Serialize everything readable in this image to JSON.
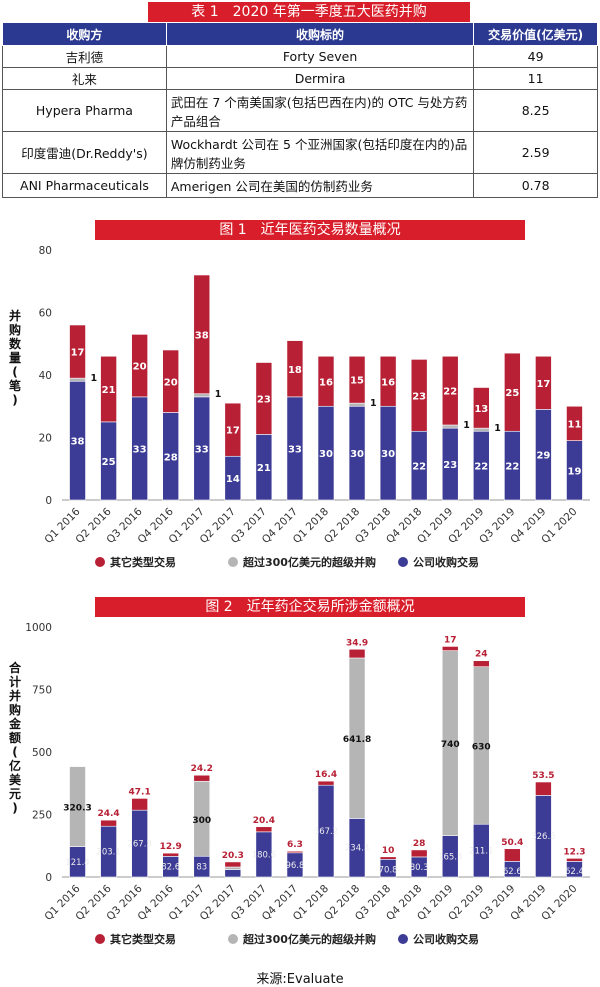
{
  "table": {
    "title": "表 1　2020 年第一季度五大医药并购",
    "headers": [
      "收购方",
      "收购标的",
      "交易价值(亿美元)"
    ],
    "rows": [
      [
        "吉利德",
        "Forty Seven",
        "49"
      ],
      [
        "礼来",
        "Dermira",
        "11"
      ],
      [
        "Hypera Pharma",
        "武田在 7 个南美国家(包括巴西在内)的 OTC 与处方药产品组合",
        "8.25"
      ],
      [
        "印度雷迪(Dr.Reddy's)",
        "Wockhardt 公司在 5 个亚洲国家(包括印度在内的)品牌仿制药业务",
        "2.59"
      ],
      [
        "ANI Pharmaceuticals",
        "Amerigen 公司在美国的仿制药业务",
        "0.78"
      ]
    ]
  },
  "colors": {
    "header_blue": "#2b3990",
    "banner_red": "#d81e2a",
    "other_red": "#b72035",
    "mega_gray": "#b5b5b6",
    "company_blue": "#3c3b95"
  },
  "chart_data": [
    {
      "type": "bar",
      "stacked": true,
      "title": "图 1　近年医药交易数量概况",
      "ylabel": "并购数量(笔)",
      "ylim": [
        0,
        80
      ],
      "yticks": [
        0,
        20,
        40,
        60,
        80
      ],
      "categories": [
        "Q1 2016",
        "Q2 2016",
        "Q3 2016",
        "Q4 2016",
        "Q1 2017",
        "Q2 2017",
        "Q3 2017",
        "Q4 2017",
        "Q1 2018",
        "Q2 2018",
        "Q3 2018",
        "Q4 2018",
        "Q1 2019",
        "Q2 2019",
        "Q3 2019",
        "Q4 2019",
        "Q1 2020"
      ],
      "series": [
        {
          "name": "公司收购交易",
          "values": [
            38,
            25,
            33,
            28,
            33,
            14,
            21,
            33,
            30,
            30,
            30,
            22,
            23,
            22,
            22,
            29,
            19
          ],
          "labels": [
            "38",
            "25",
            "33",
            "28",
            "33",
            "14",
            "21",
            "33",
            "30",
            "30",
            "30",
            "22",
            "23",
            "22",
            "22",
            "29",
            "19"
          ]
        },
        {
          "name": "超过300亿美元的超级并购",
          "values": [
            1,
            0,
            0,
            0,
            1,
            0,
            0,
            0,
            0,
            1,
            0,
            0,
            1,
            1,
            0,
            0,
            0
          ],
          "labels": [
            "1",
            "",
            "",
            "",
            "1",
            "",
            "",
            "",
            "",
            "1",
            "",
            "",
            "1",
            "1",
            "",
            "",
            ""
          ]
        },
        {
          "name": "其它类型交易",
          "values": [
            17,
            21,
            20,
            20,
            38,
            17,
            23,
            18,
            16,
            15,
            16,
            23,
            22,
            13,
            25,
            17,
            11
          ],
          "labels": [
            "17",
            "21",
            "20",
            "20",
            "38",
            "17",
            "23",
            "18",
            "16",
            "15",
            "16",
            "23",
            "22",
            "13",
            "25",
            "17",
            "11"
          ]
        }
      ],
      "legend": [
        "其它类型交易",
        "超过300亿美元的超级并购",
        "公司收购交易"
      ]
    },
    {
      "type": "bar",
      "stacked": true,
      "title": "图 2　近年药企交易所涉金额概况",
      "ylabel": "合计并购金额(亿美元)",
      "ylim": [
        0,
        1000
      ],
      "yticks": [
        0,
        250,
        500,
        750,
        1000
      ],
      "categories": [
        "Q1 2016",
        "Q2 2016",
        "Q3 2016",
        "Q4 2016",
        "Q1 2017",
        "Q2 2017",
        "Q3 2017",
        "Q4 2017",
        "Q1 2018",
        "Q2 2018",
        "Q3 2018",
        "Q4 2018",
        "Q1 2019",
        "Q2 2019",
        "Q3 2019",
        "Q4 2019",
        "Q1 2020"
      ],
      "series": [
        {
          "name": "公司收购交易",
          "values": [
            121.4,
            203.1,
            267.3,
            82.6,
            83,
            30,
            180.6,
            96.8,
            367.2,
            234.3,
            70.8,
            80.3,
            165.3,
            211.1,
            62.6,
            326.5,
            62.4
          ],
          "labels": [
            "121.4",
            "203.1",
            "267.3",
            "82.6",
            "83",
            "",
            "180.6",
            "96.8",
            "367.2",
            "234.3",
            "70.8",
            "80.3",
            "165.3",
            "211.1",
            "62.6",
            "326.5",
            "62.4"
          ]
        },
        {
          "name": "超过300亿美元的超级并购",
          "values": [
            320.3,
            0,
            0,
            0,
            300,
            10,
            0,
            0,
            0,
            641.8,
            0,
            0,
            740,
            630,
            0,
            0,
            0
          ],
          "labels": [
            "320.3",
            "",
            "",
            "",
            "300",
            "",
            "",
            "",
            "",
            "641.8",
            "",
            "",
            "740",
            "630",
            "",
            "",
            ""
          ]
        },
        {
          "name": "其它类型交易",
          "values": [
            0,
            24.4,
            47.1,
            12.9,
            24.2,
            20.3,
            20.4,
            6.3,
            16.4,
            34.9,
            10,
            28,
            17,
            24,
            50.4,
            53.5,
            12.3
          ],
          "labels": [
            "",
            "24.4",
            "47.1",
            "12.9",
            "24.2",
            "20.3",
            "20.4",
            "6.3",
            "16.4",
            "34.9",
            "10",
            "28",
            "17",
            "24",
            "50.4",
            "53.5",
            "12.3"
          ]
        }
      ],
      "legend": [
        "其它类型交易",
        "超过300亿美元的超级并购",
        "公司收购交易"
      ]
    }
  ],
  "source": "来源:Evaluate"
}
